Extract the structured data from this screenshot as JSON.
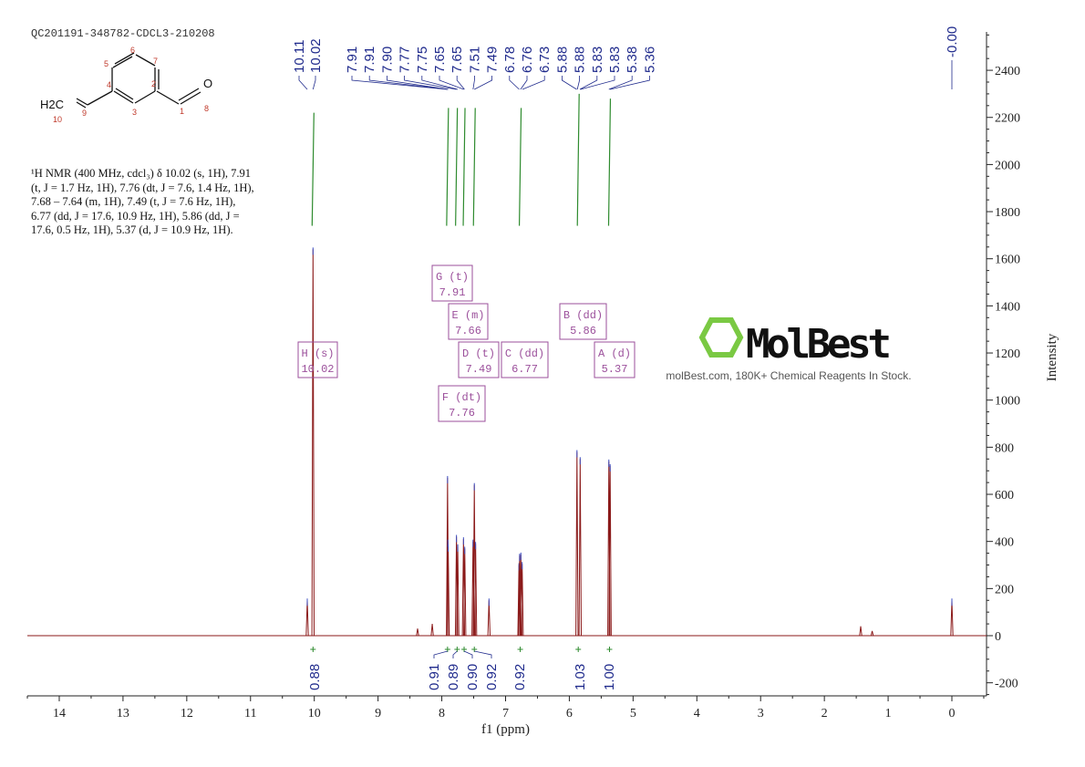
{
  "header": {
    "sample_id": "QC201191-348782-CDCL3-210208"
  },
  "description": "¹H NMR (400 MHz, cdcl₃) δ 10.02 (s, 1H), 7.91 (t, J = 1.7 Hz, 1H), 7.76 (dt, J = 7.6, 1.4 Hz, 1H), 7.68 – 7.64 (m, 1H), 7.49 (t, J = 7.6 Hz, 1H), 6.77 (dd, J = 17.6, 10.9 Hz, 1H), 5.86 (dd, J = 17.6, 0.5 Hz, 1H), 5.37 (d, J = 10.9 Hz, 1H).",
  "structure": {
    "group_label": "H2C",
    "atom_numbers": [
      "1",
      "2",
      "3",
      "4",
      "5",
      "6",
      "7",
      "8",
      "9",
      "10"
    ],
    "oxygen": "O"
  },
  "watermark": {
    "logo": "MolBest",
    "tagline": "molBest.com, 180K+ Chemical Reagents In Stock."
  },
  "chart_data": {
    "type": "line",
    "xlabel": "f1 (ppm)",
    "ylabel": "Intensity",
    "xlim": [
      14.5,
      -0.5
    ],
    "x_reversed": true,
    "ylim": [
      -250,
      2600
    ],
    "x_ticks": [
      "14",
      "13",
      "12",
      "11",
      "10",
      "9",
      "8",
      "7",
      "6",
      "5",
      "4",
      "3",
      "2",
      "1",
      "0"
    ],
    "y_ticks": [
      "-200",
      "0",
      "200",
      "400",
      "600",
      "800",
      "1000",
      "1200",
      "1400",
      "1600",
      "1800",
      "2000",
      "2200",
      "2400"
    ],
    "colors": {
      "spectrum": "#8b1a1a",
      "peak_labels": "#1f2a8c",
      "integrals": "#2e8b2e",
      "multiplets": "#9b4f9b"
    },
    "peaks": [
      [
        10.11,
        150
      ],
      [
        10.02,
        1640
      ],
      [
        8.38,
        30
      ],
      [
        8.15,
        50
      ],
      [
        7.91,
        670
      ],
      [
        7.905,
        400
      ],
      [
        7.9,
        380
      ],
      [
        7.77,
        420
      ],
      [
        7.75,
        380
      ],
      [
        7.66,
        410
      ],
      [
        7.64,
        370
      ],
      [
        7.51,
        400
      ],
      [
        7.49,
        640
      ],
      [
        7.47,
        390
      ],
      [
        7.26,
        150
      ],
      [
        6.79,
        300
      ],
      [
        6.78,
        340
      ],
      [
        6.76,
        345
      ],
      [
        6.74,
        305
      ],
      [
        5.88,
        780
      ],
      [
        5.83,
        750
      ],
      [
        5.38,
        740
      ],
      [
        5.36,
        720
      ],
      [
        1.43,
        40
      ],
      [
        1.25,
        20
      ],
      [
        0.0,
        150
      ]
    ],
    "peak_labels": [
      "10.11",
      "10.02",
      "7.91",
      "7.91",
      "7.90",
      "7.77",
      "7.75",
      "7.65",
      "7.65",
      "7.51",
      "7.49",
      "6.78",
      "6.76",
      "6.73",
      "5.88",
      "5.88",
      "5.83",
      "5.83",
      "5.38",
      "5.36",
      "-0.00"
    ],
    "integrals": [
      {
        "ppm": 10.02,
        "value": "0.88"
      },
      {
        "ppm": 7.91,
        "value": "0.91"
      },
      {
        "ppm": 7.76,
        "value": "0.89"
      },
      {
        "ppm": 7.65,
        "value": "0.90"
      },
      {
        "ppm": 7.49,
        "value": "0.92"
      },
      {
        "ppm": 6.77,
        "value": "0.92"
      },
      {
        "ppm": 5.86,
        "value": "1.03"
      },
      {
        "ppm": 5.37,
        "value": "1.00"
      }
    ],
    "multiplets": [
      {
        "id": "H (s)",
        "shift": "10.02"
      },
      {
        "id": "G (t)",
        "shift": "7.91"
      },
      {
        "id": "E (m)",
        "shift": "7.66"
      },
      {
        "id": "D (t)",
        "shift": "7.49"
      },
      {
        "id": "C (dd)",
        "shift": "6.77"
      },
      {
        "id": "B (dd)",
        "shift": "5.86"
      },
      {
        "id": "A (d)",
        "shift": "5.37"
      },
      {
        "id": "F (dt)",
        "shift": "7.76"
      }
    ]
  }
}
